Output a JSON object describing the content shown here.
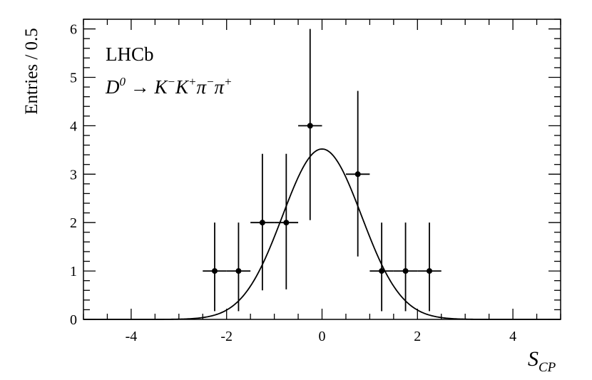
{
  "chart_data": {
    "type": "scatter",
    "experiment": "LHCb",
    "decay": {
      "parts": [
        {
          "text": "D",
          "sup": "0"
        },
        {
          "text": " → ",
          "sup": ""
        },
        {
          "text": "K",
          "sup": "−"
        },
        {
          "text": "K",
          "sup": "+"
        },
        {
          "text": "π",
          "sup": "−"
        },
        {
          "text": "π",
          "sup": "+"
        }
      ]
    },
    "ylabel": "Entries / 0.5",
    "xlabel": {
      "main": "S",
      "sub": "CP"
    },
    "xlim": [
      -5,
      5
    ],
    "ylim": [
      0,
      6.2
    ],
    "xticks": [
      -4,
      -2,
      0,
      2,
      4
    ],
    "xtick_labels": [
      "-4",
      "-2",
      "0",
      "2",
      "4"
    ],
    "yticks": [
      0,
      1,
      2,
      3,
      4,
      5,
      6
    ],
    "ytick_labels": [
      "0",
      "1",
      "2",
      "3",
      "4",
      "5",
      "6"
    ],
    "x_minor_step": 0.5,
    "y_minor_step": 0.2,
    "bin_width": 0.5,
    "points": [
      {
        "x": -2.25,
        "y": 1,
        "yerr_low": 0.83,
        "yerr_high": 1.0
      },
      {
        "x": -1.75,
        "y": 1,
        "yerr_low": 0.83,
        "yerr_high": 1.0
      },
      {
        "x": -1.25,
        "y": 2,
        "yerr_low": 1.4,
        "yerr_high": 1.42
      },
      {
        "x": -0.75,
        "y": 2,
        "yerr_low": 1.38,
        "yerr_high": 1.42
      },
      {
        "x": -0.25,
        "y": 4,
        "yerr_low": 1.95,
        "yerr_high": 2.0
      },
      {
        "x": 0.75,
        "y": 3,
        "yerr_low": 1.7,
        "yerr_high": 1.72
      },
      {
        "x": 1.25,
        "y": 1,
        "yerr_low": 0.83,
        "yerr_high": 1.0
      },
      {
        "x": 1.75,
        "y": 1,
        "yerr_low": 0.83,
        "yerr_high": 1.0
      },
      {
        "x": 2.25,
        "y": 1,
        "yerr_low": 0.83,
        "yerr_high": 1.0
      }
    ],
    "fit": {
      "type": "gaussian",
      "amplitude": 3.52,
      "mean": 0.0,
      "sigma": 0.83
    }
  }
}
